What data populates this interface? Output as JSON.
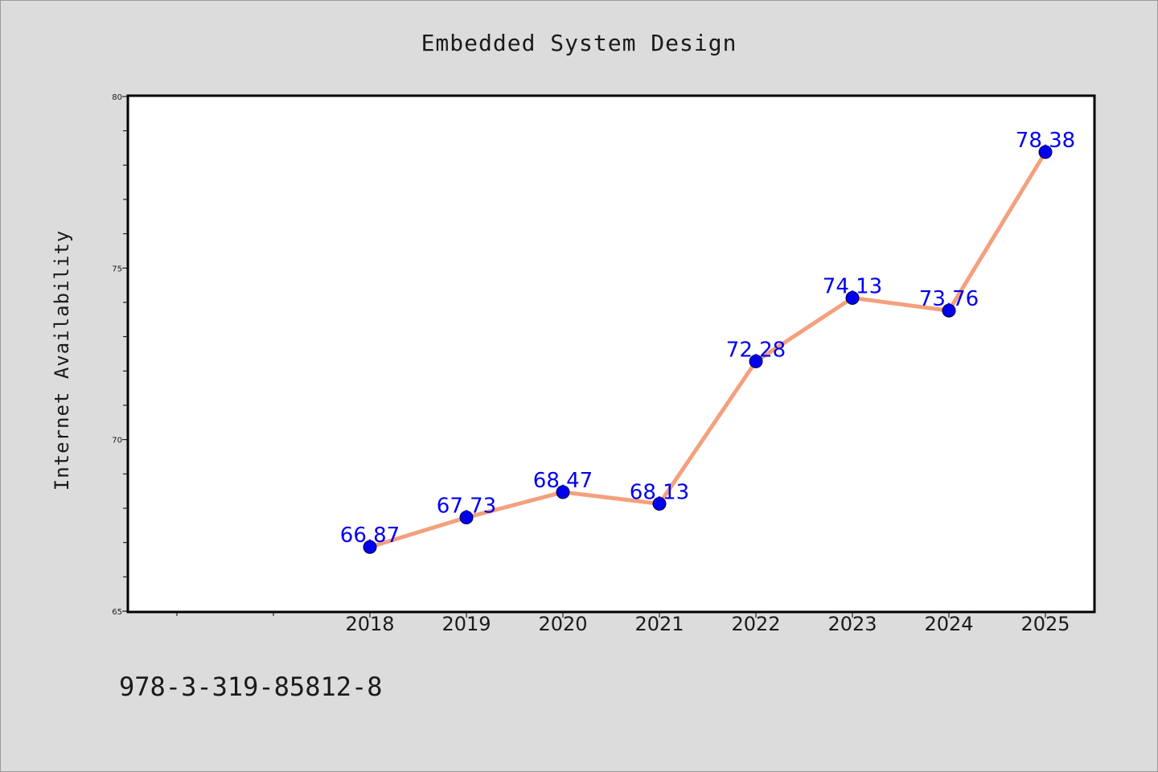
{
  "chart_data": {
    "type": "line",
    "title": "Embedded System Design",
    "xlabel": "",
    "ylabel": "Internet Availability",
    "categories": [
      "2018",
      "2019",
      "2020",
      "2021",
      "2022",
      "2023",
      "2024",
      "2025"
    ],
    "series": [
      {
        "values": [
          66.87,
          67.73,
          68.47,
          68.13,
          72.28,
          74.13,
          73.76,
          78.38
        ],
        "line_color": "#f4a07e",
        "marker_color": "#0000ee"
      }
    ],
    "data_labels": [
      "66.87",
      "67.73",
      "68.47",
      "68.13",
      "72.28",
      "74.13",
      "73.76",
      "78.38"
    ],
    "ylim": [
      65,
      80
    ],
    "yticks": [
      65,
      70,
      75,
      80
    ],
    "grid": false,
    "legend": "none",
    "label_color": "#0000ee"
  },
  "footnote": "978-3-319-85812-8"
}
